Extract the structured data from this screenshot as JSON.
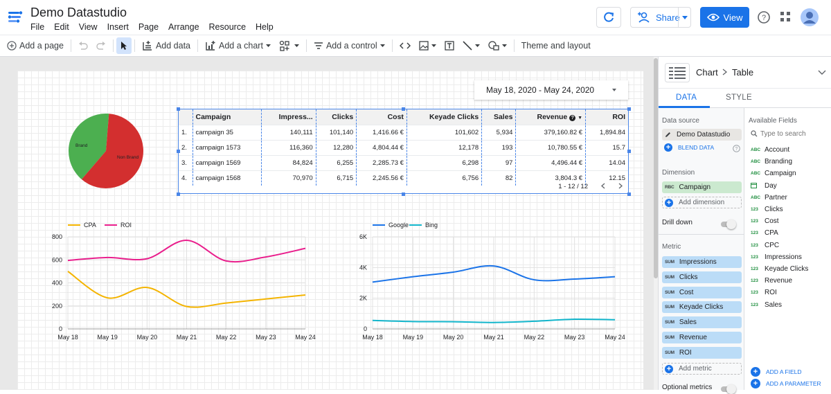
{
  "app": {
    "title": "Demo Datastudio"
  },
  "menu": [
    "File",
    "Edit",
    "View",
    "Insert",
    "Page",
    "Arrange",
    "Resource",
    "Help"
  ],
  "header": {
    "share_label": "Share",
    "view_label": "View"
  },
  "toolbar": {
    "add_page": "Add a page",
    "add_data": "Add data",
    "add_chart": "Add a chart",
    "add_control": "Add a control",
    "theme_layout": "Theme and layout"
  },
  "date_control": {
    "range": "May 18, 2020 - May 24, 2020"
  },
  "pie": {
    "labels": [
      "Brand",
      "Non Brand"
    ],
    "values": [
      40,
      60
    ],
    "colors": [
      "#4caf50",
      "#d32f2f"
    ]
  },
  "table": {
    "headers": [
      "Campaign",
      "Impress...",
      "Clicks",
      "Cost",
      "Keyade Clicks",
      "Sales",
      "Revenue",
      "ROI"
    ],
    "rows": [
      [
        "1.",
        "campaign 35",
        "140,111",
        "101,140",
        "1,416.66 €",
        "101,602",
        "5,934",
        "379,160.82 €",
        "1,894.84"
      ],
      [
        "2.",
        "campaign 1573",
        "116,360",
        "12,280",
        "4,804.44 €",
        "12,178",
        "193",
        "10,780.55 €",
        "15.7"
      ],
      [
        "3.",
        "campaign 1569",
        "84,824",
        "6,255",
        "2,285.73 €",
        "6,298",
        "97",
        "4,496.44 €",
        "14.04"
      ],
      [
        "4.",
        "campaign 1568",
        "70,970",
        "6,715",
        "2,245.56 €",
        "6,756",
        "82",
        "3,804.3 €",
        "12.15"
      ]
    ],
    "pagination": "1 - 12 / 12"
  },
  "chart_data": [
    {
      "type": "line",
      "x": [
        "May 18",
        "May 19",
        "May 20",
        "May 21",
        "May 22",
        "May 23",
        "May 24"
      ],
      "series": [
        {
          "name": "CPA",
          "color": "#f4b400",
          "values": [
            500,
            270,
            360,
            195,
            225,
            260,
            295
          ]
        },
        {
          "name": "ROI",
          "color": "#e91e8c",
          "values": [
            595,
            620,
            610,
            770,
            590,
            625,
            700
          ]
        }
      ],
      "ylim": [
        0,
        800
      ],
      "yticks": [
        "0",
        "200",
        "400",
        "600",
        "800"
      ],
      "legend": "top-left"
    },
    {
      "type": "line",
      "x": [
        "May 18",
        "May 19",
        "May 20",
        "May 21",
        "May 22",
        "May 23",
        "May 24"
      ],
      "series": [
        {
          "name": "Google",
          "color": "#1a73e8",
          "values": [
            3050,
            3400,
            3700,
            4100,
            3200,
            3250,
            3400
          ]
        },
        {
          "name": "Bing",
          "color": "#12b5cb",
          "values": [
            550,
            480,
            470,
            420,
            500,
            630,
            600
          ]
        }
      ],
      "ylim": [
        0,
        6000
      ],
      "yticks": [
        "0",
        "2K",
        "4K",
        "6K"
      ],
      "legend": "top-left"
    }
  ],
  "panel": {
    "chart_label": "Chart",
    "chart_type": "Table",
    "tab_data": "DATA",
    "tab_style": "STYLE",
    "data_source_label": "Data source",
    "data_source": "Demo Datastudio",
    "blend_data": "BLEND DATA",
    "dimension_label": "Dimension",
    "dimension": "Campaign",
    "add_dimension": "Add dimension",
    "drill_down": "Drill down",
    "metric_label": "Metric",
    "metrics": [
      "Impressions",
      "Clicks",
      "Cost",
      "Keyade Clicks",
      "Sales",
      "Revenue",
      "ROI"
    ],
    "metric_agg": "SUM",
    "add_metric": "Add metric",
    "optional_metrics": "Optional metrics",
    "available_fields_label": "Available Fields",
    "search_placeholder": "Type to search",
    "fields": [
      {
        "type": "ABC",
        "name": "Account"
      },
      {
        "type": "ABC",
        "name": "Branding"
      },
      {
        "type": "ABC",
        "name": "Campaign"
      },
      {
        "type": "CAL",
        "name": "Day"
      },
      {
        "type": "ABC",
        "name": "Partner"
      },
      {
        "type": "123",
        "name": "Clicks"
      },
      {
        "type": "123",
        "name": "Cost"
      },
      {
        "type": "123",
        "name": "CPA"
      },
      {
        "type": "123",
        "name": "CPC"
      },
      {
        "type": "123",
        "name": "Impressions"
      },
      {
        "type": "123",
        "name": "Keyade Clicks"
      },
      {
        "type": "123",
        "name": "Revenue"
      },
      {
        "type": "123",
        "name": "ROI"
      },
      {
        "type": "123",
        "name": "Sales"
      }
    ],
    "add_field": "ADD A FIELD",
    "add_parameter": "ADD A PARAMETER"
  }
}
